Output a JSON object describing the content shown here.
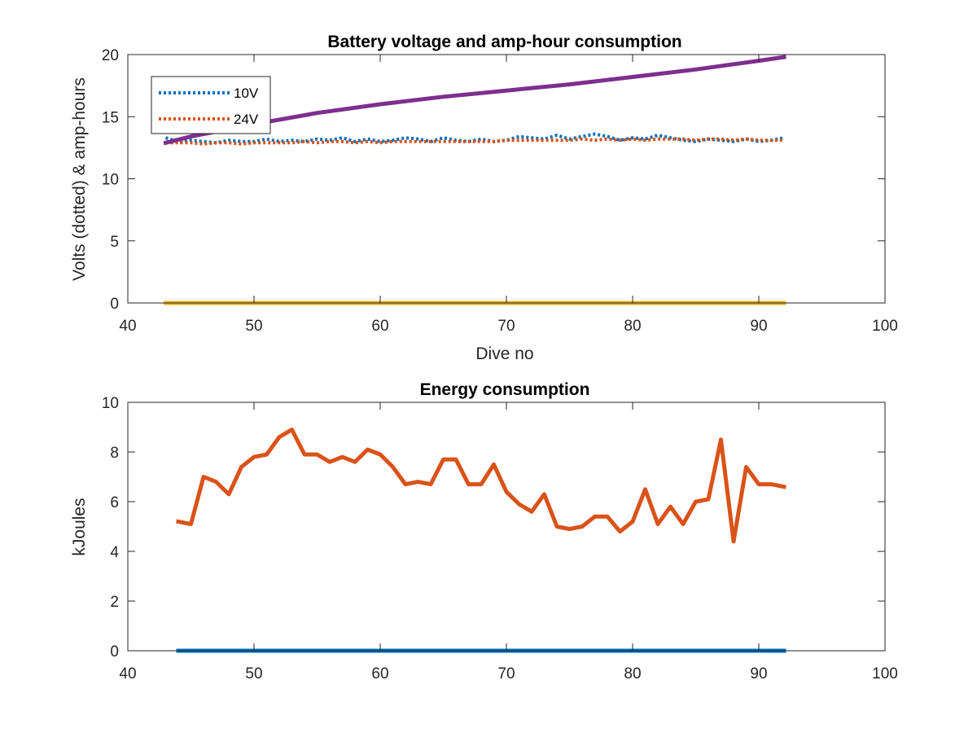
{
  "chart_data": [
    {
      "type": "line",
      "title": "Battery voltage and amp-hour consumption",
      "xlabel": "Dive no",
      "ylabel": "Volts (dotted) & amp-hours",
      "xlim": [
        40,
        100
      ],
      "ylim": [
        0,
        20
      ],
      "xticks": [
        40,
        50,
        60,
        70,
        80,
        90,
        100
      ],
      "yticks": [
        0,
        5,
        10,
        15,
        20
      ],
      "grid": false,
      "legend": {
        "placement": "top-left",
        "entries": [
          "10V",
          "24V"
        ]
      },
      "series": [
        {
          "name": "10V",
          "style": "dotted",
          "color": "#0072BD",
          "x": [
            43,
            44,
            45,
            46,
            47,
            48,
            49,
            50,
            51,
            52,
            53,
            54,
            55,
            56,
            57,
            58,
            59,
            60,
            61,
            62,
            63,
            64,
            65,
            66,
            67,
            68,
            69,
            70,
            71,
            72,
            73,
            74,
            75,
            76,
            77,
            78,
            79,
            80,
            81,
            82,
            83,
            84,
            85,
            86,
            87,
            88,
            89,
            90,
            91,
            92
          ],
          "y": [
            13.3,
            13.0,
            13.1,
            13.0,
            12.9,
            13.1,
            13.0,
            13.0,
            13.2,
            13.0,
            13.1,
            13.0,
            13.2,
            13.1,
            13.3,
            13.0,
            13.2,
            13.0,
            13.1,
            13.3,
            13.2,
            13.0,
            13.3,
            13.1,
            13.0,
            13.2,
            13.0,
            13.1,
            13.4,
            13.3,
            13.2,
            13.5,
            13.2,
            13.4,
            13.6,
            13.4,
            13.1,
            13.3,
            13.2,
            13.5,
            13.3,
            13.1,
            13.0,
            13.2,
            13.1,
            13.0,
            13.2,
            13.0,
            13.1,
            13.3
          ]
        },
        {
          "name": "24V",
          "style": "dotted",
          "color": "#D95319",
          "x": [
            43,
            44,
            45,
            46,
            47,
            48,
            49,
            50,
            51,
            52,
            53,
            54,
            55,
            56,
            57,
            58,
            59,
            60,
            61,
            62,
            63,
            64,
            65,
            66,
            67,
            68,
            69,
            70,
            71,
            72,
            73,
            74,
            75,
            76,
            77,
            78,
            79,
            80,
            81,
            82,
            83,
            84,
            85,
            86,
            87,
            88,
            89,
            90,
            91,
            92
          ],
          "y": [
            12.9,
            12.9,
            12.9,
            12.8,
            12.9,
            12.9,
            12.8,
            12.9,
            12.9,
            12.9,
            12.9,
            13.0,
            12.9,
            13.0,
            13.0,
            12.9,
            13.0,
            12.9,
            13.0,
            13.0,
            13.0,
            13.0,
            13.0,
            13.0,
            13.0,
            13.0,
            13.0,
            13.1,
            13.1,
            13.1,
            13.1,
            13.1,
            13.1,
            13.2,
            13.1,
            13.2,
            13.1,
            13.2,
            13.1,
            13.2,
            13.2,
            13.2,
            13.1,
            13.2,
            13.2,
            13.1,
            13.2,
            13.1,
            13.1,
            13.1
          ]
        },
        {
          "style": "solid",
          "color": "#7E2F8E",
          "x": [
            43,
            45,
            50,
            55,
            60,
            65,
            70,
            75,
            80,
            85,
            90,
            92
          ],
          "y": [
            12.9,
            13.4,
            14.4,
            15.3,
            16.0,
            16.6,
            17.1,
            17.6,
            18.2,
            18.8,
            19.5,
            19.8
          ]
        },
        {
          "style": "solid",
          "color": "#EDB120",
          "x": [
            43,
            92
          ],
          "y": [
            0,
            0
          ]
        }
      ]
    },
    {
      "type": "line",
      "title": "Energy consumption",
      "xlabel": "",
      "ylabel": "kJoules",
      "xlim": [
        40,
        100
      ],
      "ylim": [
        0,
        10
      ],
      "xticks": [
        40,
        50,
        60,
        70,
        80,
        90,
        100
      ],
      "yticks": [
        0,
        2,
        4,
        6,
        8,
        10
      ],
      "grid": false,
      "series": [
        {
          "style": "solid",
          "color": "#D95319",
          "x": [
            44,
            45,
            46,
            47,
            48,
            49,
            50,
            51,
            52,
            53,
            54,
            55,
            56,
            57,
            58,
            59,
            60,
            61,
            62,
            63,
            64,
            65,
            66,
            67,
            68,
            69,
            70,
            71,
            72,
            73,
            74,
            75,
            76,
            77,
            78,
            79,
            80,
            81,
            82,
            83,
            84,
            85,
            86,
            87,
            88,
            89,
            90,
            91,
            92
          ],
          "y": [
            5.2,
            5.1,
            7.0,
            6.8,
            6.3,
            7.4,
            7.8,
            7.9,
            8.6,
            8.9,
            7.9,
            7.9,
            7.6,
            7.8,
            7.6,
            8.1,
            7.9,
            7.4,
            6.7,
            6.8,
            6.7,
            7.7,
            7.7,
            6.7,
            6.7,
            7.5,
            6.4,
            5.9,
            5.6,
            6.3,
            5.0,
            4.9,
            5.0,
            5.4,
            5.4,
            4.8,
            5.2,
            6.5,
            5.1,
            5.8,
            5.1,
            6.0,
            6.1,
            8.5,
            4.4,
            7.4,
            6.7,
            6.7,
            6.6
          ]
        },
        {
          "style": "solid",
          "color": "#0072BD",
          "x": [
            44,
            92
          ],
          "y": [
            0,
            0
          ]
        }
      ]
    }
  ]
}
